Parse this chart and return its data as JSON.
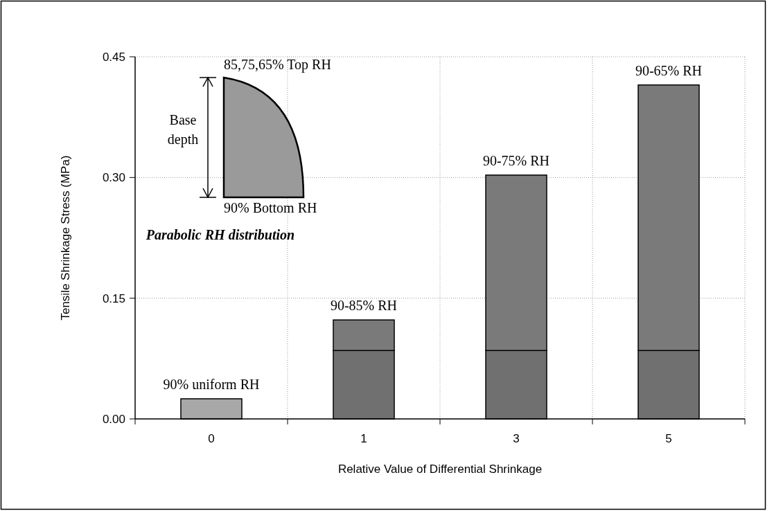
{
  "chart_data": {
    "type": "bar",
    "xlabel": "Relative Value of Differential Shrinkage",
    "ylabel": "Tensile Shrinkage Stress (MPa)",
    "categories": [
      "0",
      "1",
      "3",
      "5"
    ],
    "stacked": true,
    "series": [
      {
        "colors": [
          "#a8a8a8",
          "#707070",
          "#707070",
          "#707070"
        ],
        "values": [
          0.025,
          0.085,
          0.085,
          0.085
        ]
      },
      {
        "color": "#7a7a7a",
        "values": [
          null,
          0.038,
          0.218,
          0.33
        ]
      }
    ],
    "ylim": [
      0,
      0.45
    ],
    "yticks": [
      {
        "value": 0,
        "label": "0.00"
      },
      {
        "value": 0.15,
        "label": "0.15"
      },
      {
        "value": 0.3,
        "label": "0.30"
      },
      {
        "value": 0.45,
        "label": "0.45"
      }
    ],
    "grid": true,
    "annotations": [
      {
        "text": "90% uniform RH",
        "x": "0",
        "y": 0.025
      },
      {
        "text": "90-85% RH",
        "x": "1",
        "y": 0.123
      },
      {
        "text": "90-75% RH",
        "x": "3",
        "y": 0.303
      },
      {
        "text": "90-65% RH",
        "x": "5",
        "y": 0.415
      },
      "85,75,65% Top RH",
      "Base depth",
      "90% Bottom RH",
      "Parabolic RH distribution"
    ]
  }
}
